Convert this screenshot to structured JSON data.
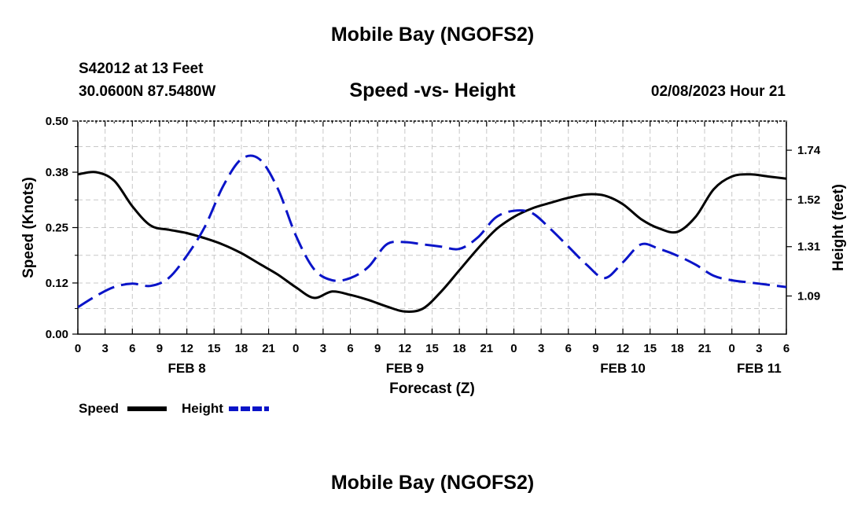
{
  "header": {
    "title": "Mobile Bay (NGOFS2)",
    "station": "S42012 at 13 Feet",
    "coords": "30.0600N  87.5480W",
    "subtitle": "Speed -vs- Height",
    "datetime": "02/08/2023 Hour 21"
  },
  "footer": {
    "title": "Mobile Bay (NGOFS2)"
  },
  "chart_data": {
    "type": "line",
    "xlabel": "Forecast (Z)",
    "ylabel": "Speed (Knots)",
    "y2label": "Height (feet)",
    "x_ticks": [
      "0",
      "3",
      "6",
      "9",
      "12",
      "15",
      "18",
      "21",
      "0",
      "3",
      "6",
      "9",
      "12",
      "15",
      "18",
      "21",
      "0",
      "3",
      "6",
      "9",
      "12",
      "15",
      "18",
      "21",
      "0",
      "3",
      "6"
    ],
    "date_labels": [
      {
        "label": "FEB 8",
        "at_hour": 12
      },
      {
        "label": "FEB 9",
        "at_hour": 36
      },
      {
        "label": "FEB 10",
        "at_hour": 60
      },
      {
        "label": "FEB 11",
        "at_hour": 75
      }
    ],
    "xlim": [
      0,
      78
    ],
    "ylim": [
      0,
      0.5
    ],
    "y_ticks": [
      "0.00",
      "0.12",
      "0.25",
      "0.38",
      "0.50"
    ],
    "y2lim": [
      0.92,
      1.87
    ],
    "y2_ticks": [
      "1.09",
      "1.31",
      "1.52",
      "1.74"
    ],
    "grid": true,
    "legend_position": "bottom-left",
    "series": [
      {
        "name": "Speed",
        "axis": "left",
        "color": "#000000",
        "style": "solid",
        "x": [
          0,
          2,
          4,
          6,
          8,
          10,
          12,
          14,
          16,
          18,
          20,
          22,
          24,
          26,
          28,
          30,
          32,
          34,
          36,
          38,
          40,
          42,
          44,
          46,
          48,
          50,
          52,
          54,
          56,
          58,
          60,
          62,
          64,
          66,
          68,
          70,
          72,
          74,
          76,
          78
        ],
        "y": [
          0.375,
          0.38,
          0.36,
          0.3,
          0.255,
          0.245,
          0.237,
          0.225,
          0.21,
          0.19,
          0.165,
          0.14,
          0.11,
          0.085,
          0.1,
          0.092,
          0.08,
          0.065,
          0.053,
          0.06,
          0.1,
          0.15,
          0.2,
          0.245,
          0.275,
          0.295,
          0.308,
          0.32,
          0.328,
          0.325,
          0.305,
          0.27,
          0.248,
          0.24,
          0.275,
          0.34,
          0.37,
          0.375,
          0.37,
          0.365
        ]
      },
      {
        "name": "Height",
        "axis": "right",
        "color": "#0a14c8",
        "style": "dashed",
        "x": [
          0,
          2,
          4,
          6,
          8,
          10,
          12,
          14,
          16,
          18,
          20,
          22,
          24,
          26,
          28,
          30,
          32,
          34,
          36,
          38,
          40,
          42,
          44,
          46,
          48,
          50,
          52,
          54,
          56,
          58,
          60,
          62,
          64,
          66,
          68,
          70,
          72,
          74,
          76,
          78
        ],
        "y": [
          1.04,
          1.09,
          1.13,
          1.145,
          1.135,
          1.17,
          1.27,
          1.4,
          1.58,
          1.7,
          1.7,
          1.57,
          1.36,
          1.21,
          1.16,
          1.17,
          1.22,
          1.32,
          1.33,
          1.32,
          1.31,
          1.3,
          1.35,
          1.44,
          1.47,
          1.46,
          1.39,
          1.31,
          1.23,
          1.17,
          1.24,
          1.32,
          1.3,
          1.27,
          1.23,
          1.18,
          1.16,
          1.15,
          1.14,
          1.13
        ]
      }
    ],
    "legend": [
      {
        "label": "Speed",
        "color": "#000000",
        "style": "solid"
      },
      {
        "label": "Height",
        "color": "#0a14c8",
        "style": "dashed"
      }
    ]
  }
}
